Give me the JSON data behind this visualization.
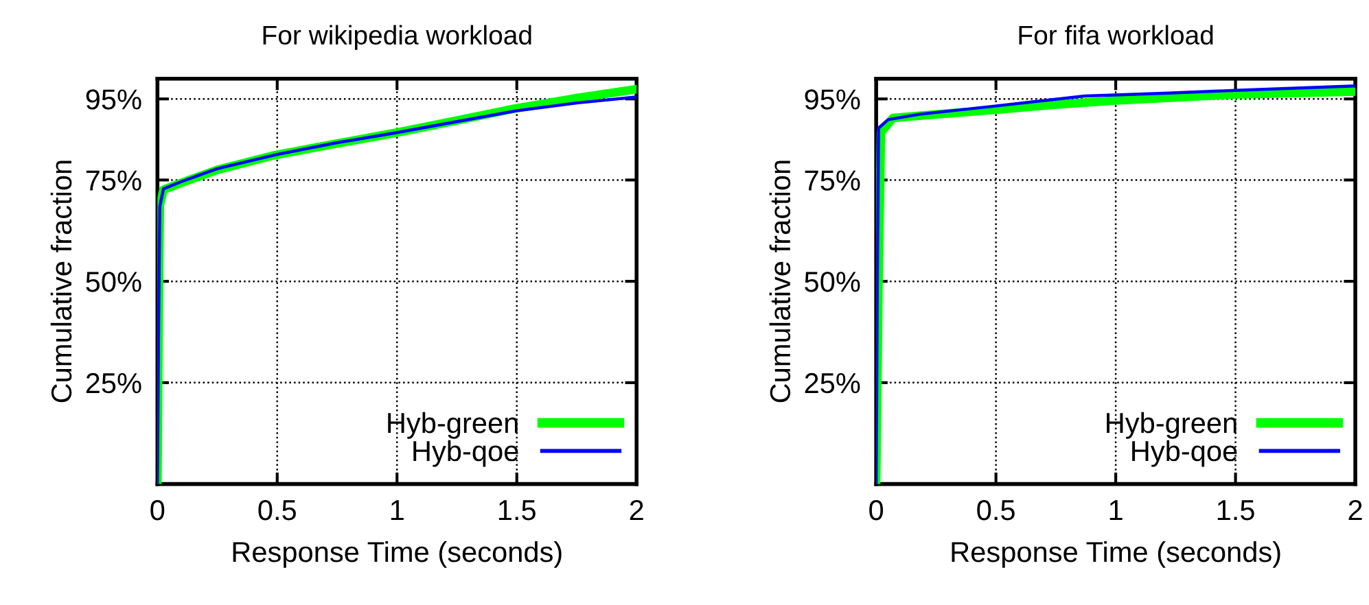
{
  "chart_data": [
    {
      "type": "line",
      "title": "For wikipedia workload",
      "xlabel": "Response Time (seconds)",
      "ylabel": "Cumulative fraction",
      "xlim": [
        0,
        2
      ],
      "xticks": [
        0,
        0.5,
        1,
        1.5,
        2
      ],
      "ylim": [
        0,
        100
      ],
      "yticks": [
        {
          "value": 25,
          "label": "25%"
        },
        {
          "value": 50,
          "label": "50%"
        },
        {
          "value": 75,
          "label": "75%"
        },
        {
          "value": 95,
          "label": "95%"
        }
      ],
      "grid": true,
      "legend": "bottom right",
      "series": [
        {
          "name": "Hyb-green",
          "color": "#00ff00",
          "x": [
            0,
            0.005,
            0.01,
            0.025,
            0.1,
            0.25,
            0.48,
            0.75,
            1,
            1.25,
            1.49,
            1.75,
            2
          ],
          "values": [
            0,
            40,
            68.7,
            72.6,
            74.3,
            77.5,
            81,
            84,
            86.7,
            89.7,
            92.6,
            95.2,
            97.4
          ]
        },
        {
          "name": "Hyb-qoe",
          "color": "#0000ff",
          "x": [
            0,
            0.005,
            0.01,
            0.025,
            0.1,
            0.25,
            0.5,
            0.75,
            1,
            1.25,
            1.5,
            1.75,
            2
          ],
          "values": [
            0,
            40,
            68.5,
            72.8,
            74.6,
            77.8,
            81.3,
            84.2,
            86.7,
            89.4,
            92.1,
            94,
            95.5
          ]
        }
      ]
    },
    {
      "type": "line",
      "title": "For fifa workload",
      "xlabel": "Response Time (seconds)",
      "ylabel": "Cumulative fraction",
      "xlim": [
        0,
        2
      ],
      "xticks": [
        0,
        0.5,
        1,
        1.5,
        2
      ],
      "ylim": [
        0,
        100
      ],
      "yticks": [
        {
          "value": 25,
          "label": "25%"
        },
        {
          "value": 50,
          "label": "50%"
        },
        {
          "value": 75,
          "label": "75%"
        },
        {
          "value": 95,
          "label": "95%"
        }
      ],
      "grid": true,
      "legend": "bottom right",
      "series": [
        {
          "name": "Hyb-green",
          "color": "#00ff00",
          "x": [
            0,
            0.01,
            0.02,
            0.07,
            0.25,
            0.49,
            0.75,
            1,
            1.5,
            2
          ],
          "values": [
            0,
            50,
            86.7,
            90.3,
            91.2,
            92.3,
            93.6,
            94.6,
            96.1,
            96.8
          ]
        },
        {
          "name": "Hyb-qoe",
          "color": "#0000ff",
          "x": [
            0,
            0.005,
            0.01,
            0.05,
            0.18,
            0.49,
            0.87,
            1.2,
            1.5,
            2
          ],
          "values": [
            0,
            50,
            87.8,
            89.9,
            91.2,
            93.2,
            95.7,
            96.4,
            97.1,
            98.2
          ]
        }
      ]
    }
  ]
}
